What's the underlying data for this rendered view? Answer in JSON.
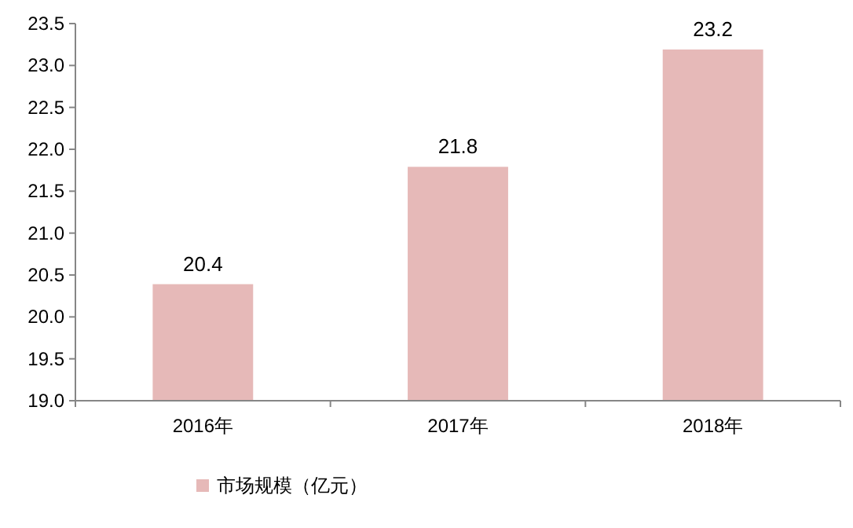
{
  "chart_data": {
    "type": "bar",
    "categories": [
      "2016年",
      "2017年",
      "2018年"
    ],
    "series": [
      {
        "name": "市场规模（亿元）",
        "color": "#e6b9b8",
        "values": [
          20.4,
          21.8,
          23.2
        ]
      }
    ],
    "ylim": [
      19.0,
      23.5
    ],
    "yticks": [
      {
        "value": 19,
        "label": "19.0"
      },
      {
        "value": 19.5,
        "label": "19.5"
      },
      {
        "value": 20,
        "label": "20.0"
      },
      {
        "value": 20.5,
        "label": "20.5"
      },
      {
        "value": 21,
        "label": "21.0"
      },
      {
        "value": 21.5,
        "label": "21.5"
      },
      {
        "value": 22,
        "label": "22.0"
      },
      {
        "value": 22.5,
        "label": "22.5"
      },
      {
        "value": 23,
        "label": "23.0"
      },
      {
        "value": 23.5,
        "label": "23.5"
      }
    ],
    "data_labels": true,
    "legend": "bottom",
    "grid": false
  }
}
